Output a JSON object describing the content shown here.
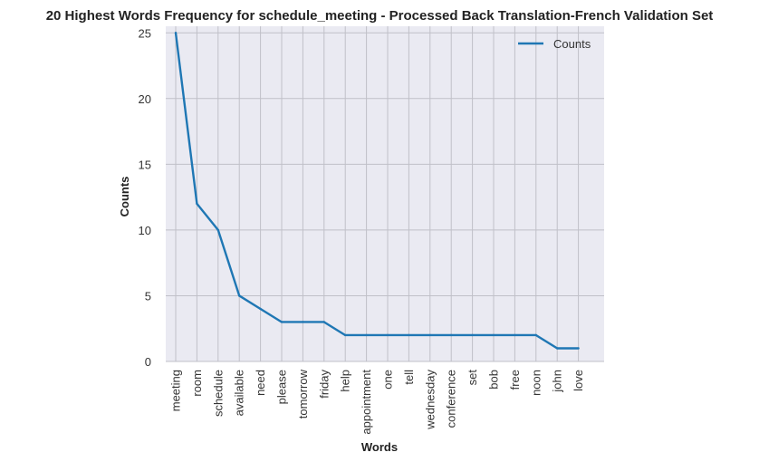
{
  "chart_data": {
    "type": "line",
    "title": "20 Highest Words Frequency for schedule_meeting - Processed Back Translation-French Validation Set",
    "xlabel": "Words",
    "ylabel": "Counts",
    "categories": [
      "meeting",
      "room",
      "schedule",
      "available",
      "need",
      "please",
      "tomorrow",
      "friday",
      "help",
      "appointment",
      "one",
      "tell",
      "wednesday",
      "conference",
      "set",
      "bob",
      "free",
      "noon",
      "john",
      "love"
    ],
    "series": [
      {
        "name": "Counts",
        "values": [
          25,
          12,
          10,
          5,
          4,
          3,
          3,
          3,
          2,
          2,
          2,
          2,
          2,
          2,
          2,
          2,
          2,
          2,
          1,
          1
        ],
        "color": "#1f77b4"
      }
    ],
    "ylim": [
      0,
      25.5
    ],
    "yticks": [
      0,
      5,
      10,
      15,
      20,
      25
    ],
    "grid": true,
    "legend_position": "top-right",
    "background": "#eaeaf2",
    "grid_color": "#c0c0c8"
  }
}
